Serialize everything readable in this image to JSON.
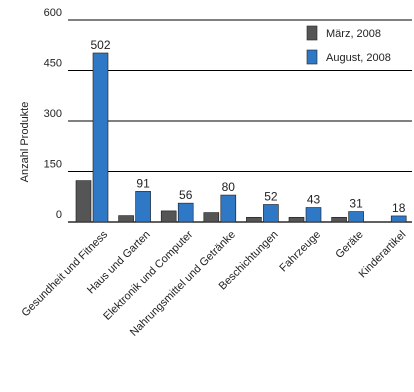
{
  "chart_data": {
    "type": "bar",
    "ylabel": "Anzahl Produkte",
    "ylim": [
      0,
      600
    ],
    "yticks": [
      0,
      150,
      300,
      450,
      600
    ],
    "grid": true,
    "legend_position": "top-right",
    "categories": [
      "Gesundheit und Fitness",
      "Haus und Garten",
      "Elektronik und Computer",
      "Nahrungsmittel und Getränke",
      "Beschichtungen",
      "Fahrzeuge",
      "Geräte",
      "Kinderartikel"
    ],
    "series": [
      {
        "name": "März, 2008",
        "color": "#555555",
        "values": [
          123,
          19,
          33,
          28,
          14,
          14,
          14,
          0
        ],
        "labels": [
          "",
          "",
          "",
          "",
          "",
          "",
          "",
          ""
        ]
      },
      {
        "name": "August, 2008",
        "color": "#2f78c5",
        "values": [
          502,
          91,
          56,
          80,
          52,
          43,
          31,
          18
        ],
        "labels": [
          "502",
          "91",
          "56",
          "80",
          "52",
          "43",
          "31",
          "18"
        ]
      }
    ]
  }
}
